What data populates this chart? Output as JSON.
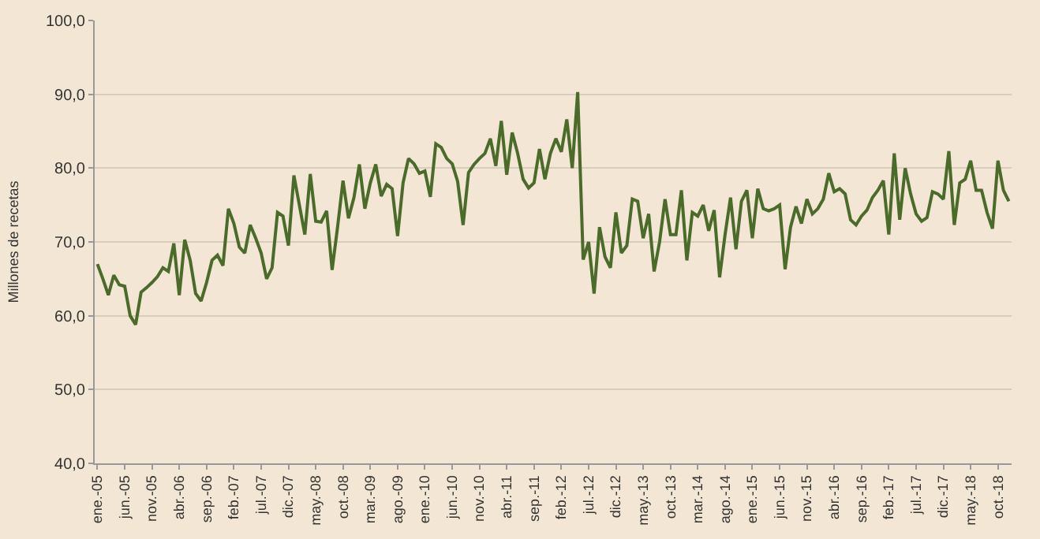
{
  "chart_data": {
    "type": "line",
    "ylabel": "Millones de recetas",
    "categories": [
      "ene.-05",
      null,
      null,
      null,
      null,
      "jun.-05",
      null,
      null,
      null,
      null,
      "nov.-05",
      null,
      null,
      null,
      null,
      "abr.-06",
      null,
      null,
      null,
      null,
      "sep.-06",
      null,
      null,
      null,
      null,
      "feb.-07",
      null,
      null,
      null,
      null,
      "jul.-07",
      null,
      null,
      null,
      null,
      "dic.-07",
      null,
      null,
      null,
      null,
      "may.-08",
      null,
      null,
      null,
      null,
      "oct.-08",
      null,
      null,
      null,
      null,
      "mar.-09",
      null,
      null,
      null,
      null,
      "ago.-09",
      null,
      null,
      null,
      null,
      "ene.-10",
      null,
      null,
      null,
      null,
      "jun.-10",
      null,
      null,
      null,
      null,
      "nov.-10",
      null,
      null,
      null,
      null,
      "abr.-11",
      null,
      null,
      null,
      null,
      "sep.-11",
      null,
      null,
      null,
      null,
      "feb.-12",
      null,
      null,
      null,
      null,
      "jul.-12",
      null,
      null,
      null,
      null,
      "dic.-12",
      null,
      null,
      null,
      null,
      "may.-13",
      null,
      null,
      null,
      null,
      "oct.-13",
      null,
      null,
      null,
      null,
      "mar.-14",
      null,
      null,
      null,
      null,
      "ago.-14",
      null,
      null,
      null,
      null,
      "ene.-15",
      null,
      null,
      null,
      null,
      "jun.-15",
      null,
      null,
      null,
      null,
      "nov.-15",
      null,
      null,
      null,
      null,
      "abr.-16",
      null,
      null,
      null,
      null,
      "sep.-16",
      null,
      null,
      null,
      null,
      "feb.-17",
      null,
      null,
      null,
      null,
      "jul.-17",
      null,
      null,
      null,
      null,
      "dic.-17",
      null,
      null,
      null,
      null,
      "may.-18",
      null,
      null,
      null,
      null,
      "oct.-18",
      null,
      null
    ],
    "series": [
      {
        "color": "#4a6b2a",
        "values": [
          67,
          65,
          62.8,
          65.5,
          64.2,
          64,
          60,
          58.8,
          63.2,
          63.8,
          64.5,
          65.3,
          66.5,
          66,
          69.8,
          62.8,
          70.3,
          67.5,
          63,
          62,
          64.5,
          67.5,
          68.2,
          66.8,
          74.5,
          72.5,
          69.3,
          68.5,
          72.3,
          70.5,
          68.5,
          65,
          66.5,
          74,
          73.5,
          69.5,
          79,
          75,
          71,
          79.2,
          72.8,
          72.7,
          74.2,
          66.2,
          72,
          78.3,
          73.2,
          76,
          80.5,
          74.5,
          78,
          80.5,
          76.2,
          77.8,
          77.2,
          70.8,
          78,
          81.3,
          80.6,
          79.3,
          79.6,
          76.1,
          83.3,
          82.8,
          81.3,
          80.6,
          78.2,
          72.3,
          79.4,
          80.5,
          81.3,
          82,
          84,
          80.3,
          86.4,
          79.1,
          84.8,
          82,
          78.5,
          77.3,
          78,
          82.6,
          78.5,
          82,
          84,
          82.2,
          86.6,
          80,
          90.3,
          67.6,
          70,
          63,
          72,
          68,
          66.5,
          74,
          68.5,
          69.5,
          75.8,
          75.5,
          70.5,
          73.8,
          66,
          70,
          75.8,
          71,
          71,
          77,
          67.5,
          74,
          73.5,
          75,
          71.5,
          74.3,
          65.2,
          71,
          76,
          69,
          75.5,
          77,
          70.5,
          77.2,
          74.5,
          74.2,
          74.5,
          75,
          66.3,
          72,
          74.8,
          72.5,
          75.8,
          73.8,
          74.5,
          75.8,
          79.3,
          76.8,
          77.2,
          76.5,
          73,
          72.3,
          73.5,
          74.3,
          76,
          77,
          78.3,
          71,
          82,
          73,
          80,
          76.5,
          73.8,
          72.8,
          73.3,
          76.8,
          76.5,
          75.8,
          82.3,
          72.3,
          78,
          78.5,
          81,
          77,
          77,
          74,
          71.8,
          81,
          77,
          75.5
        ]
      }
    ],
    "ylim": [
      40,
      100
    ],
    "yticks": [
      {
        "value": 40,
        "label": "40,0"
      },
      {
        "value": 50,
        "label": "50,0"
      },
      {
        "value": 60,
        "label": "60,0"
      },
      {
        "value": 70,
        "label": "70,0"
      },
      {
        "value": 80,
        "label": "80,0"
      },
      {
        "value": 90,
        "label": "90,0"
      },
      {
        "value": 100,
        "label": "100,0"
      }
    ],
    "grid": "y",
    "marker": "none",
    "line_style": "solid"
  }
}
